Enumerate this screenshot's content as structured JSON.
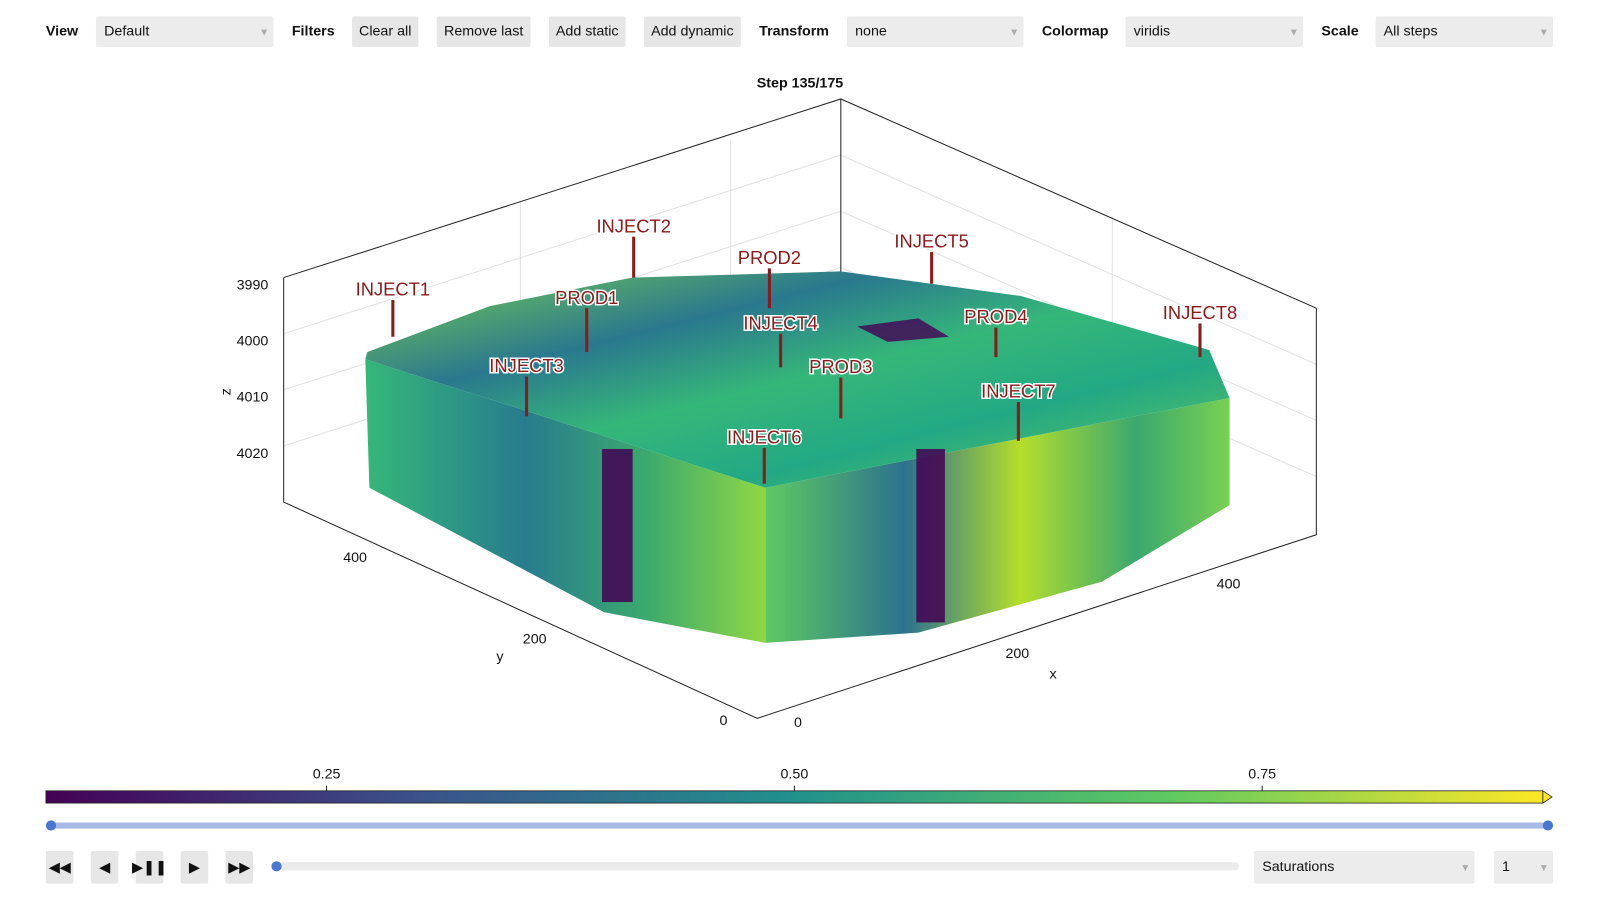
{
  "toolbar": {
    "view_label": "View",
    "view": "Default",
    "filters_label": "Filters",
    "buttons": [
      "Clear all",
      "Remove last",
      "Add static",
      "Add dynamic"
    ],
    "transform_label": "Transform",
    "transform": "none",
    "colormap_label": "Colormap",
    "colormap": "viridis",
    "scale_label": "Scale",
    "scale": "All steps"
  },
  "plot": {
    "title": "Step 135/175",
    "z_label": "z",
    "z_ticks": [
      3990,
      4000,
      4010,
      4020
    ],
    "y_label": "y",
    "y_ticks": [
      0,
      200,
      400
    ],
    "x_label": "x",
    "x_ticks": [
      0,
      200,
      400
    ],
    "wells": [
      "INJECT1",
      "INJECT2",
      "PROD2",
      "INJECT5",
      "PROD1",
      "INJECT4",
      "PROD4",
      "INJECT8",
      "INJECT3",
      "PROD3",
      "INJECT7",
      "INJECT6"
    ]
  },
  "colorbar": {
    "lim": [
      0.1,
      0.9
    ],
    "ticks": [
      0.25,
      {
        "value": 0.5,
        "label": "0.50"
      },
      0.75
    ]
  },
  "controls": {
    "variable": "Saturations",
    "component": "1"
  }
}
